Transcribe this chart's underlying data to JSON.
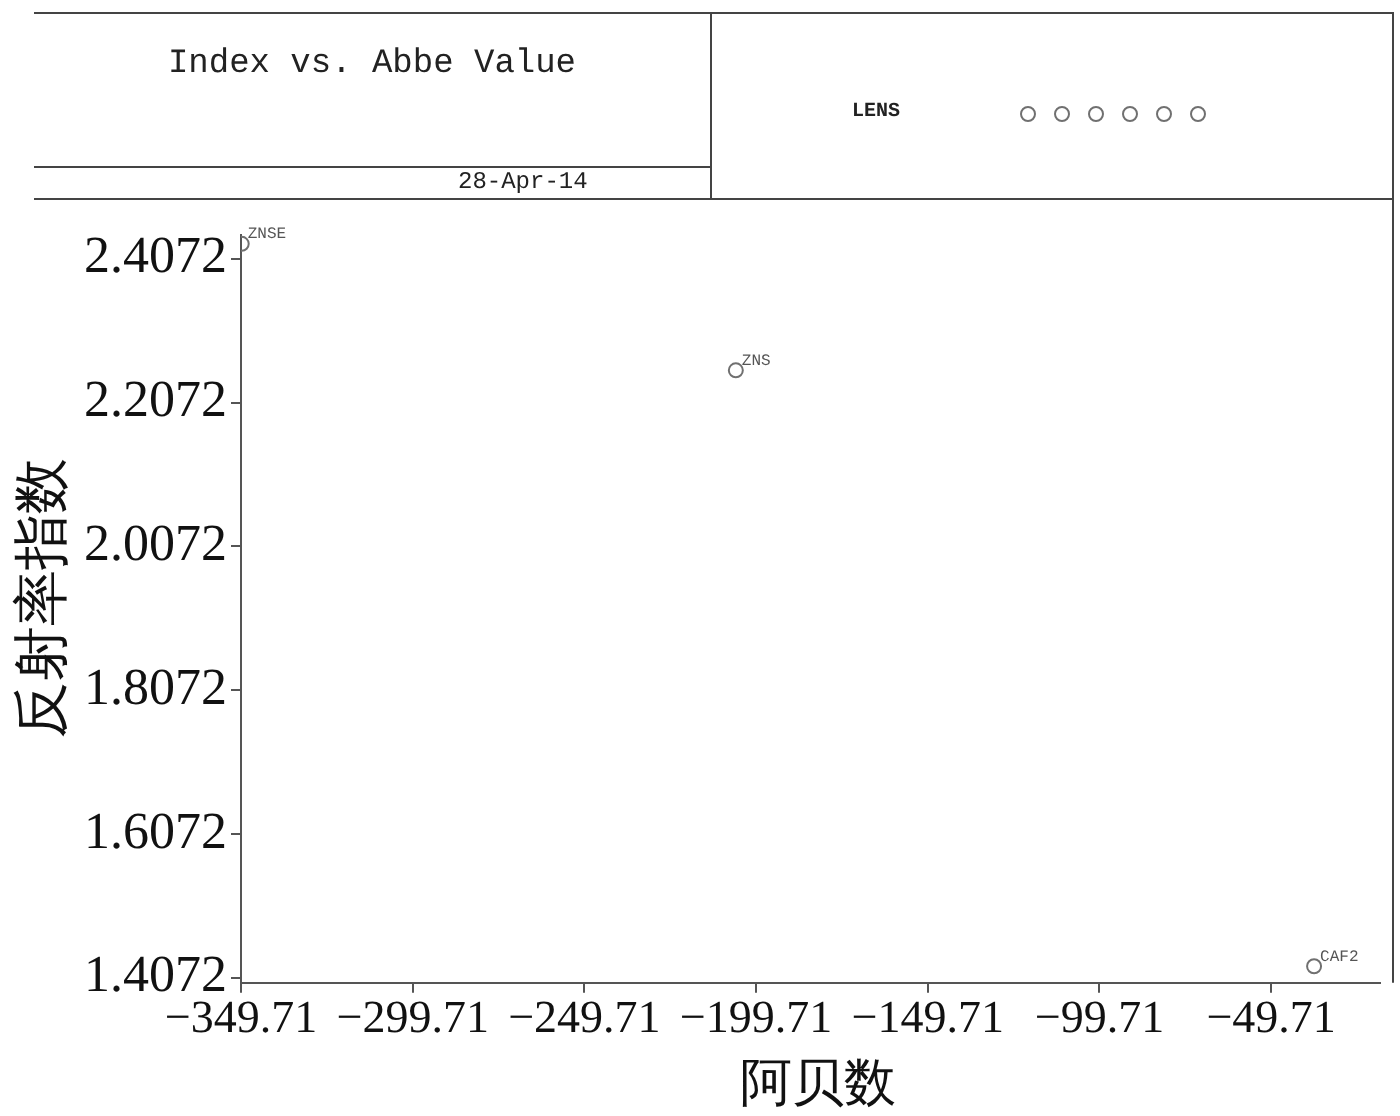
{
  "chart_data": {
    "type": "scatter",
    "title": "Index vs. Abbe Value",
    "xlabel": "阿贝数",
    "ylabel": "反射率指数",
    "x": [
      -349.5,
      -205.6,
      -37.2
    ],
    "series": [
      {
        "name": "LENS",
        "color": "#707070",
        "values": [
          2.428,
          2.252,
          1.423
        ]
      }
    ],
    "annotations": [
      "28-Apr-14",
      {
        "text": "ZNSE",
        "x": -349.5,
        "y": 2.428
      },
      {
        "text": "ZNS",
        "x": -205.6,
        "y": 2.252
      },
      {
        "text": "CAF2",
        "x": -37.2,
        "y": 1.423
      }
    ],
    "xlim": [
      -349.71,
      -18
    ],
    "ylim": [
      1.4,
      2.44
    ],
    "xticks": [
      -349.71,
      -299.71,
      -249.71,
      -199.71,
      -149.71,
      -99.71,
      -49.71
    ],
    "yticks": [
      1.4072,
      1.6072,
      1.8072,
      2.0072,
      2.2072,
      2.4072
    ],
    "grid": false,
    "legend": "top right",
    "marker": "circle"
  }
}
